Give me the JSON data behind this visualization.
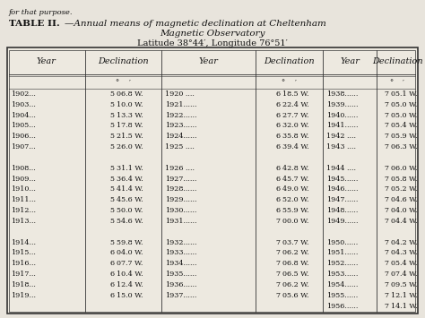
{
  "header_text": "for that purpose.",
  "title_bold": "TABLE II.",
  "title_italic": "—Annual means of magnetic declination at Cheltenham",
  "title_line2": "Magnetic Observatory",
  "subtitle": "Latitude 38°44′, Longitude 76°51′",
  "col_headers": [
    "Year",
    "Declination",
    "Year",
    "Declination",
    "Year",
    "Declination"
  ],
  "rows": [
    [
      "1902...",
      "5",
      "06.8 W.",
      "1920 ....",
      "6",
      "18.5 W.",
      "1938......",
      "7",
      "05.1 W."
    ],
    [
      "1903...",
      "5",
      "10.0 W.",
      "1921......",
      "6",
      "22.4 W.",
      "1939......",
      "7",
      "05.0 W."
    ],
    [
      "1904...",
      "5",
      "13.3 W.",
      "1922......",
      "6",
      "27.7 W.",
      "1940......",
      "7",
      "05.0 W."
    ],
    [
      "1905...",
      "5",
      "17.8 W.",
      "1923......",
      "6",
      "32.0 W.",
      "1941......",
      "7",
      "05.4 W."
    ],
    [
      "1906...",
      "5",
      "21.5 W.",
      "1924......",
      "6",
      "35.8 W.",
      "1942 ....",
      "7",
      "05.9 W."
    ],
    [
      "1907...",
      "5",
      "26.0 W.",
      "1925 ....",
      "6",
      "39.4 W.",
      "1943 ....",
      "7",
      "06.3 W."
    ],
    [
      "",
      "",
      "",
      "",
      "",
      "",
      "",
      "",
      ""
    ],
    [
      "1908...",
      "5",
      "31.1 W.",
      "1926 ....",
      "6",
      "42.8 W.",
      "1944 ....",
      "7",
      "06.0 W."
    ],
    [
      "1909...",
      "5",
      "36.4 W.",
      "1927......",
      "6",
      "45.7 W.",
      "1945......",
      "7",
      "05.8 W."
    ],
    [
      "1910...",
      "5",
      "41.4 W.",
      "1928......",
      "6",
      "49.0 W.",
      "1946......",
      "7",
      "05.2 W."
    ],
    [
      "1911...",
      "5",
      "45.6 W.",
      "1929......",
      "6",
      "52.0 W.",
      "1947......",
      "7",
      "04.6 W."
    ],
    [
      "1912...",
      "5",
      "50.0 W.",
      "1930......",
      "6",
      "55.9 W.",
      "1948......",
      "7",
      "04.0 W."
    ],
    [
      "1913...",
      "5",
      "54.6 W.",
      "1931......",
      "7",
      "00.0 W.",
      "1949......",
      "7",
      "04.4 W."
    ],
    [
      "",
      "",
      "",
      "",
      "",
      "",
      "",
      "",
      ""
    ],
    [
      "1914...",
      "5",
      "59.8 W.",
      "1932......",
      "7",
      "03.7 W.",
      "1950......",
      "7",
      "04.2 W."
    ],
    [
      "1915...",
      "6",
      "04.0 W.",
      "1933......",
      "7",
      "06.2 W.",
      "1951......",
      "7",
      "04.3 W."
    ],
    [
      "1916...",
      "6",
      "07.7 W.",
      "1934......",
      "7",
      "06.8 W.",
      "1952......",
      "7",
      "05.4 W."
    ],
    [
      "1917...",
      "6",
      "10.4 W.",
      "1935......",
      "7",
      "06.5 W.",
      "1953......",
      "7",
      "07.4 W."
    ],
    [
      "1918...",
      "6",
      "12.4 W.",
      "1936......",
      "7",
      "06.2 W.",
      "1954......",
      "7",
      "09.5 W."
    ],
    [
      "1919...",
      "6",
      "15.0 W.",
      "1937......",
      "7",
      "05.6 W.",
      "1955......",
      "7",
      "12.1 W."
    ],
    [
      "",
      "",
      "",
      "",
      "",
      "",
      "1956......",
      "7",
      "14.1 W."
    ]
  ],
  "bg_color": "#e8e4dc",
  "table_bg": "#ede9e0",
  "border_color": "#333333",
  "text_color": "#111111"
}
